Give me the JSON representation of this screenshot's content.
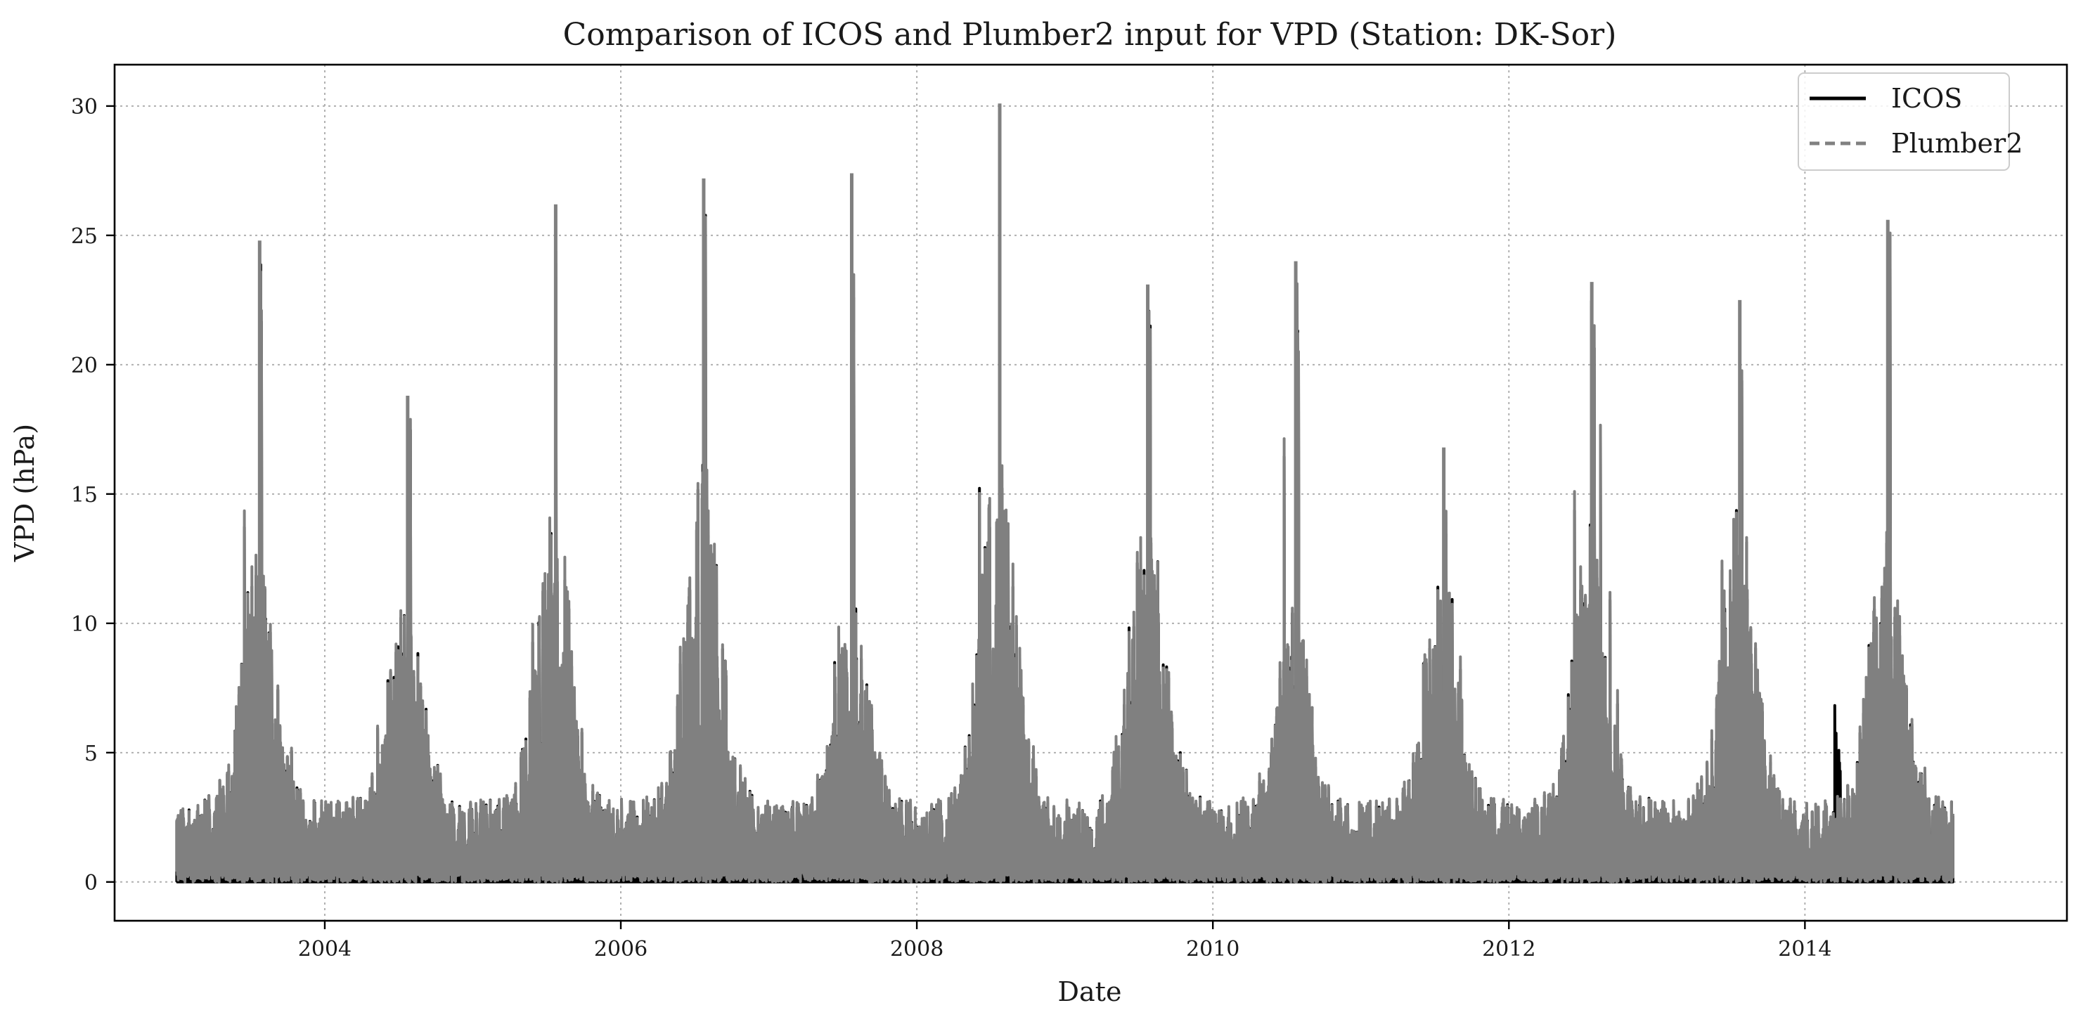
{
  "chart_data": {
    "type": "line",
    "title": "Comparison of ICOS and Plumber2 input for VPD (Station: DK-Sor)",
    "xlabel": "Date",
    "ylabel": "VPD (hPa)",
    "xlim": [
      2002.58,
      2015.77
    ],
    "ylim": [
      -1.5,
      31.6
    ],
    "x_ticks": [
      2004,
      2006,
      2008,
      2010,
      2012,
      2014
    ],
    "x_tick_labels": [
      "2004",
      "2006",
      "2008",
      "2010",
      "2012",
      "2014"
    ],
    "y_ticks": [
      0,
      5,
      10,
      15,
      20,
      25,
      30
    ],
    "y_tick_labels": [
      "0",
      "5",
      "10",
      "15",
      "20",
      "25",
      "30"
    ],
    "grid": true,
    "legend_position": "top-right",
    "data_range": [
      2003.0,
      2015.0
    ],
    "series": [
      {
        "name": "ICOS",
        "color": "#000000",
        "style": "solid",
        "annual_max": [
          24.8,
          18.8,
          26.2,
          27.2,
          27.4,
          30.1,
          23.1,
          24.0,
          16.8,
          23.2,
          22.5,
          25.6
        ],
        "summer_upper_envelope": [
          12.0,
          10.0,
          14.0,
          16.0,
          11.0,
          16.0,
          14.0,
          10.0,
          12.0,
          13.0,
          14.0,
          13.0
        ],
        "notes": "Gap-filled block of ~0.3 hPa early 2014; spike near 7 hPa in spring 2014"
      },
      {
        "name": "Plumber2",
        "color": "#808080",
        "style": "dashed",
        "annual_max": [
          24.8,
          18.8,
          26.2,
          27.2,
          27.4,
          30.1,
          23.1,
          24.0,
          16.8,
          23.2,
          22.5,
          25.6
        ],
        "summer_upper_envelope": [
          12.0,
          10.0,
          14.0,
          16.0,
          11.0,
          16.0,
          14.0,
          10.0,
          12.0,
          13.0,
          14.0,
          13.0
        ]
      }
    ]
  }
}
